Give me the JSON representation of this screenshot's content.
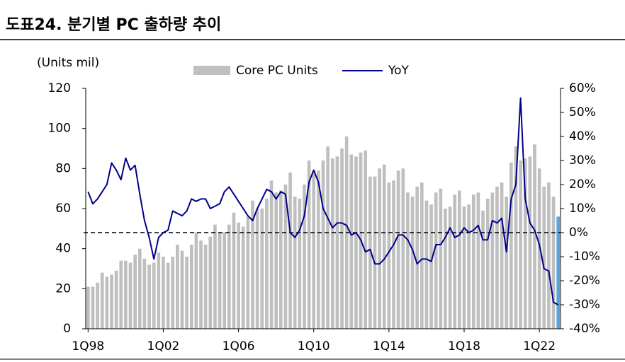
{
  "chart_data": {
    "type": "bar-line",
    "title": "도표24. 분기별 PC 출하량 추이",
    "y_label": "(Units mil)",
    "categories": [
      "1Q98",
      null,
      null,
      null,
      null,
      null,
      null,
      null,
      null,
      null,
      null,
      null,
      null,
      null,
      null,
      null,
      "1Q02",
      null,
      null,
      null,
      null,
      null,
      null,
      null,
      null,
      null,
      null,
      null,
      null,
      null,
      null,
      null,
      "1Q06",
      null,
      null,
      null,
      null,
      null,
      null,
      null,
      null,
      null,
      null,
      null,
      null,
      null,
      null,
      null,
      "1Q10",
      null,
      null,
      null,
      null,
      null,
      null,
      null,
      null,
      null,
      null,
      null,
      null,
      null,
      null,
      null,
      "1Q14",
      null,
      null,
      null,
      null,
      null,
      null,
      null,
      null,
      null,
      null,
      null,
      null,
      null,
      null,
      null,
      "1Q18",
      null,
      null,
      null,
      null,
      null,
      null,
      null,
      null,
      null,
      null,
      null,
      null,
      null,
      null,
      null,
      "1Q22",
      null,
      null,
      null,
      null
    ],
    "series": [
      {
        "name": "Core PC Units",
        "color": "#bfbfbf",
        "highlight_color": "#5ba3d9",
        "values": [
          21,
          21,
          23,
          28,
          26,
          27,
          29,
          34,
          34,
          33,
          37,
          40,
          35,
          32,
          33,
          38,
          36,
          33,
          36,
          42,
          39,
          36,
          42,
          48,
          44,
          42,
          46,
          52,
          48,
          48,
          52,
          58,
          53,
          51,
          56,
          64,
          60,
          60,
          65,
          74,
          68,
          69,
          72,
          78,
          66,
          65,
          72,
          84,
          79,
          79,
          84,
          91,
          85,
          86,
          90,
          96,
          87,
          86,
          88,
          89,
          76,
          76,
          80,
          82,
          73,
          74,
          79,
          80,
          68,
          66,
          71,
          73,
          64,
          62,
          68,
          70,
          60,
          61,
          67,
          69,
          61,
          62,
          67,
          68,
          59,
          65,
          68,
          71,
          73,
          66,
          83,
          91,
          84,
          85,
          86,
          92,
          80,
          71,
          73,
          66,
          56
        ]
      },
      {
        "name": "YoY",
        "color": "#00008b",
        "axis": "y2",
        "values": [
          17,
          12,
          14,
          17,
          20,
          29,
          26,
          22,
          31,
          26,
          28,
          16,
          5,
          -2,
          -11,
          -2,
          0,
          1,
          9,
          8,
          7,
          9,
          14,
          13,
          14,
          14,
          10,
          11,
          12,
          17,
          19,
          16,
          13,
          10,
          7,
          5,
          10,
          14,
          18,
          17,
          14,
          17,
          16,
          0,
          -2,
          1,
          7,
          21,
          26,
          21,
          10,
          6,
          2,
          4,
          4,
          3,
          -1,
          0,
          -3,
          -8,
          -7,
          -13,
          -13,
          -11,
          -8,
          -5,
          -1,
          -1,
          -3,
          -7,
          -13,
          -11,
          -11,
          -12,
          -5,
          -5,
          -2,
          2,
          -2,
          -1,
          2,
          0,
          1,
          3,
          -3,
          -3,
          5,
          4,
          6,
          -8,
          14,
          20,
          56,
          14,
          4,
          1,
          -5,
          -15,
          -16,
          -29,
          -30
        ]
      }
    ],
    "ylim": [
      0,
      120
    ],
    "yticks": [
      0,
      20,
      40,
      60,
      80,
      100,
      120
    ],
    "y2lim": [
      -40,
      60
    ],
    "y2ticks": [
      {
        "value": 60,
        "label": "60%"
      },
      {
        "value": 50,
        "label": "50%"
      },
      {
        "value": 40,
        "label": "40%"
      },
      {
        "value": 30,
        "label": "30%"
      },
      {
        "value": 20,
        "label": "20%"
      },
      {
        "value": 10,
        "label": "10%"
      },
      {
        "value": 0,
        "label": "0%"
      },
      {
        "value": -10,
        "label": "-10%"
      },
      {
        "value": -20,
        "label": "-20%"
      },
      {
        "value": -30,
        "label": "-30%"
      },
      {
        "value": -40,
        "label": "-40%"
      }
    ],
    "zero_line": true
  }
}
